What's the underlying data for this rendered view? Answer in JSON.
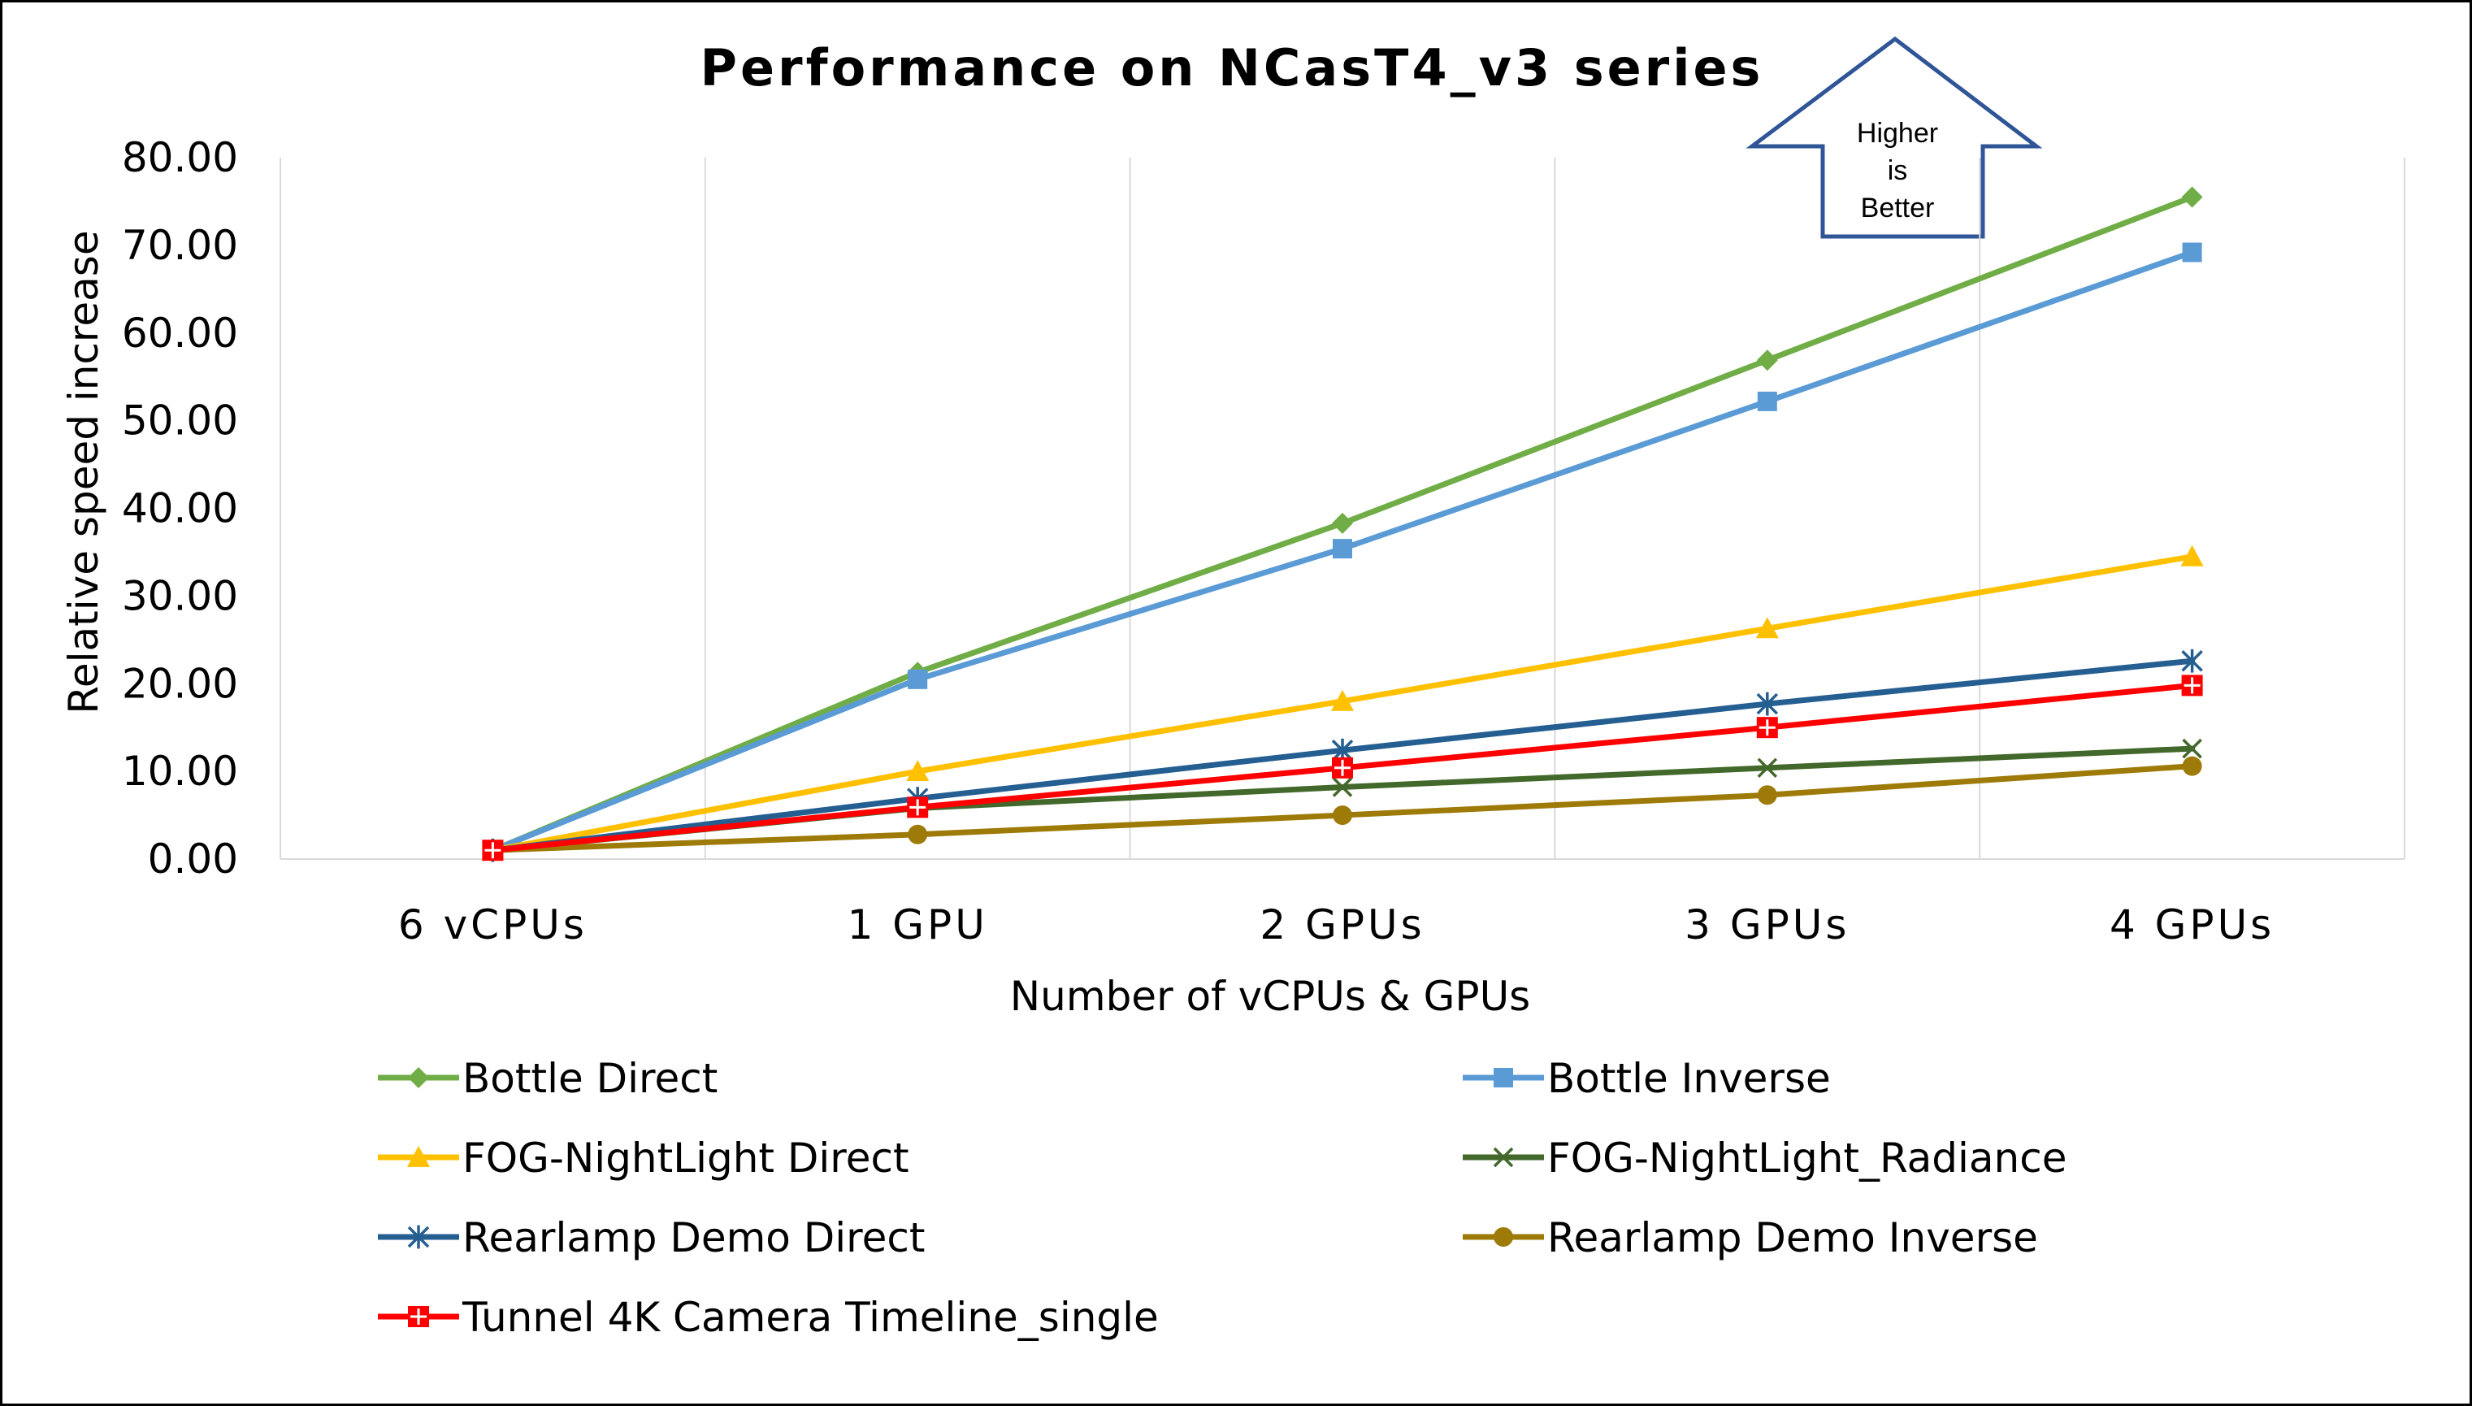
{
  "chart_data": {
    "type": "line",
    "title": "Performance on NCasT4_v3 series",
    "xlabel": "Number of vCPUs & GPUs",
    "ylabel": "Relative speed increase",
    "categories": [
      "6 vCPUs",
      "1 GPU",
      "2 GPUs",
      "3 GPUs",
      "4 GPUs"
    ],
    "ylim": [
      0,
      80
    ],
    "yticks": [
      "0.00",
      "10.00",
      "20.00",
      "30.00",
      "40.00",
      "50.00",
      "60.00",
      "70.00",
      "80.00"
    ],
    "grid": "vertical",
    "legend_position": "bottom",
    "series": [
      {
        "name": "Bottle Direct",
        "color": "#70AD47",
        "marker": "diamond",
        "values": [
          1.0,
          21.3,
          38.3,
          56.9,
          75.5
        ]
      },
      {
        "name": "Bottle Inverse",
        "color": "#5B9BD5",
        "marker": "square",
        "values": [
          1.0,
          20.5,
          35.4,
          52.2,
          69.2
        ]
      },
      {
        "name": "FOG-NightLight Direct",
        "color": "#FFC000",
        "marker": "triangle",
        "values": [
          1.0,
          10.0,
          18.0,
          26.3,
          34.5
        ]
      },
      {
        "name": "FOG-NightLight_Radiance",
        "color": "#43682B",
        "marker": "x",
        "values": [
          1.0,
          5.8,
          8.2,
          10.4,
          12.6
        ]
      },
      {
        "name": "Rearlamp Demo Direct",
        "color": "#255E91",
        "marker": "star",
        "values": [
          1.0,
          6.9,
          12.4,
          17.7,
          22.6
        ]
      },
      {
        "name": "Rearlamp Demo Inverse",
        "color": "#9E7B08",
        "marker": "circle",
        "values": [
          1.0,
          2.8,
          5.0,
          7.3,
          10.6
        ]
      },
      {
        "name": "Tunnel 4K Camera Timeline_single",
        "color": "#FF0000",
        "marker": "plus-square",
        "values": [
          1.0,
          5.9,
          10.4,
          15.0,
          19.8
        ]
      }
    ],
    "annotation": {
      "lines": [
        "Higher",
        "is",
        "Better"
      ],
      "color": "#2F5597"
    }
  }
}
